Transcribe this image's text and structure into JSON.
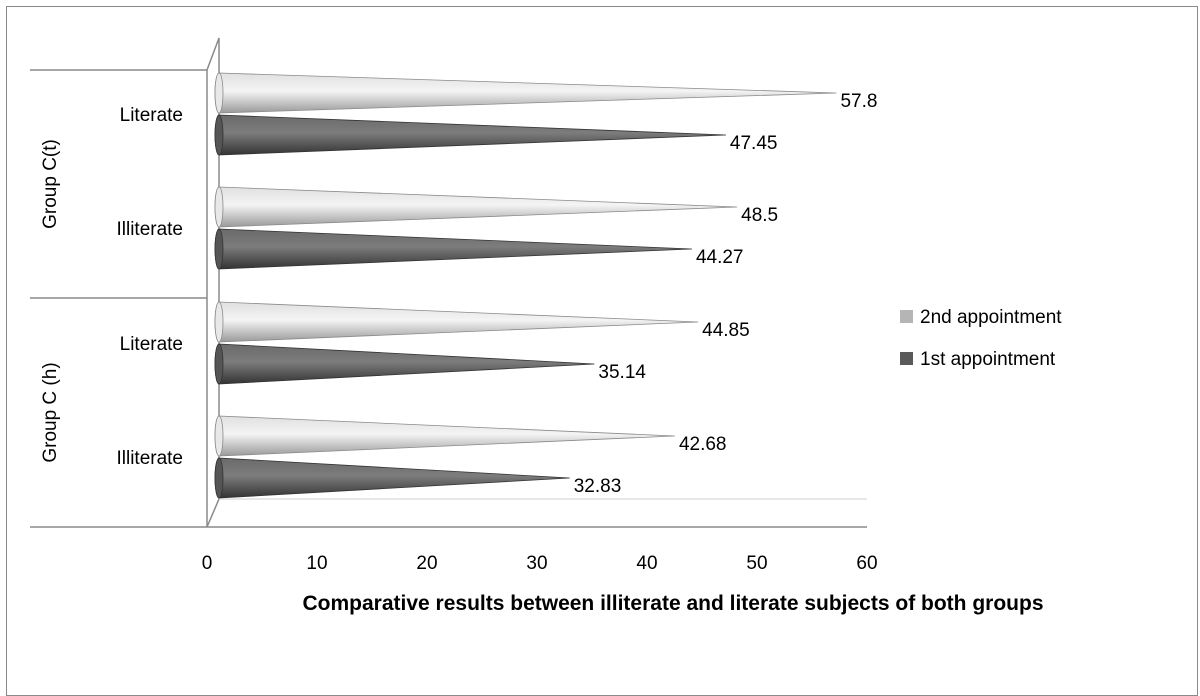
{
  "chart_data": {
    "type": "bar",
    "orientation": "horizontal",
    "title": "",
    "xlabel": "Comparative results between illiterate and literate subjects of both groups",
    "ylabel": "",
    "xlim": [
      0,
      60
    ],
    "xticks": [
      0,
      10,
      20,
      30,
      40,
      50,
      60
    ],
    "grid": false,
    "legend_position": "right",
    "groups": [
      {
        "name": "Group C(t)",
        "categories": [
          {
            "name": "Literate",
            "values": {
              "2nd appointment": 57.8,
              "1st appointment": 47.45
            },
            "labels": {
              "2nd appointment": "57.8",
              "1st appointment": "47.45"
            }
          },
          {
            "name": "Illiterate",
            "values": {
              "2nd appointment": 48.5,
              "1st appointment": 44.27
            },
            "labels": {
              "2nd appointment": "48.5",
              "1st appointment": "44.27"
            }
          }
        ]
      },
      {
        "name": "Group C (h)",
        "categories": [
          {
            "name": "Literate",
            "values": {
              "2nd appointment": 44.85,
              "1st appointment": 35.14
            },
            "labels": {
              "2nd appointment": "44.85",
              "1st appointment": "35.14"
            }
          },
          {
            "name": "Illiterate",
            "values": {
              "2nd appointment": 42.68,
              "1st appointment": 32.83
            },
            "labels": {
              "2nd appointment": "42.68",
              "1st appointment": "32.83"
            }
          }
        ]
      }
    ],
    "series": [
      {
        "name": "2nd appointment",
        "color": "#b5b5b5"
      },
      {
        "name": "1st appointment",
        "color": "#5a5a5a"
      }
    ]
  }
}
